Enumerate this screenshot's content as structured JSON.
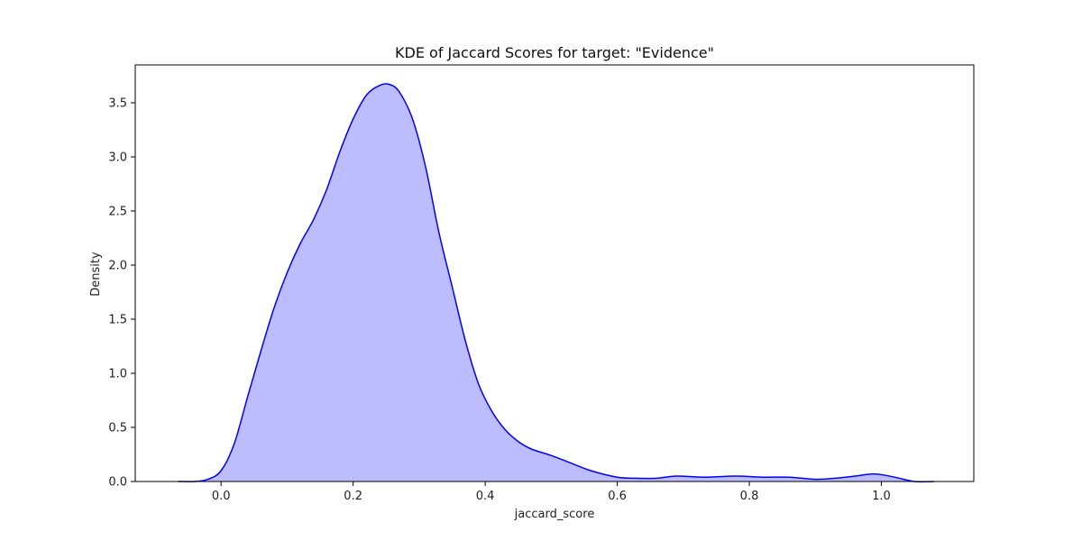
{
  "chart_data": {
    "type": "area",
    "title": "KDE of Jaccard Scores for target: \"Evidence\"",
    "xlabel": "jaccard_score",
    "ylabel": "Density",
    "xlim": [
      -0.13,
      1.14
    ],
    "ylim": [
      0,
      3.85
    ],
    "xticks": [
      0.0,
      0.2,
      0.4,
      0.6,
      0.8,
      1.0
    ],
    "xtick_labels": [
      "0.0",
      "0.2",
      "0.4",
      "0.6",
      "0.8",
      "1.0"
    ],
    "yticks": [
      0.0,
      0.5,
      1.0,
      1.5,
      2.0,
      2.5,
      3.0,
      3.5
    ],
    "ytick_labels": [
      "0.0",
      "0.5",
      "1.0",
      "1.5",
      "2.0",
      "2.5",
      "3.0",
      "3.5"
    ],
    "grid": false,
    "legend": false,
    "colors": {
      "line": "#0000ff",
      "fill": "#bcbcff"
    },
    "x": [
      -0.065,
      -0.04,
      -0.02,
      0.0,
      0.02,
      0.04,
      0.06,
      0.08,
      0.1,
      0.12,
      0.14,
      0.16,
      0.18,
      0.2,
      0.22,
      0.24,
      0.255,
      0.27,
      0.29,
      0.31,
      0.33,
      0.35,
      0.37,
      0.39,
      0.41,
      0.43,
      0.45,
      0.47,
      0.5,
      0.53,
      0.56,
      0.6,
      0.63,
      0.66,
      0.69,
      0.73,
      0.78,
      0.82,
      0.86,
      0.9,
      0.93,
      0.96,
      0.99,
      1.02,
      1.05,
      1.08
    ],
    "y": [
      0.0,
      0.0,
      0.02,
      0.1,
      0.35,
      0.78,
      1.2,
      1.6,
      1.93,
      2.2,
      2.42,
      2.7,
      3.05,
      3.35,
      3.57,
      3.66,
      3.67,
      3.6,
      3.35,
      2.9,
      2.3,
      1.8,
      1.3,
      0.9,
      0.65,
      0.48,
      0.37,
      0.3,
      0.24,
      0.17,
      0.1,
      0.04,
      0.03,
      0.03,
      0.05,
      0.04,
      0.05,
      0.04,
      0.04,
      0.02,
      0.03,
      0.05,
      0.07,
      0.04,
      0.0,
      0.0
    ]
  }
}
